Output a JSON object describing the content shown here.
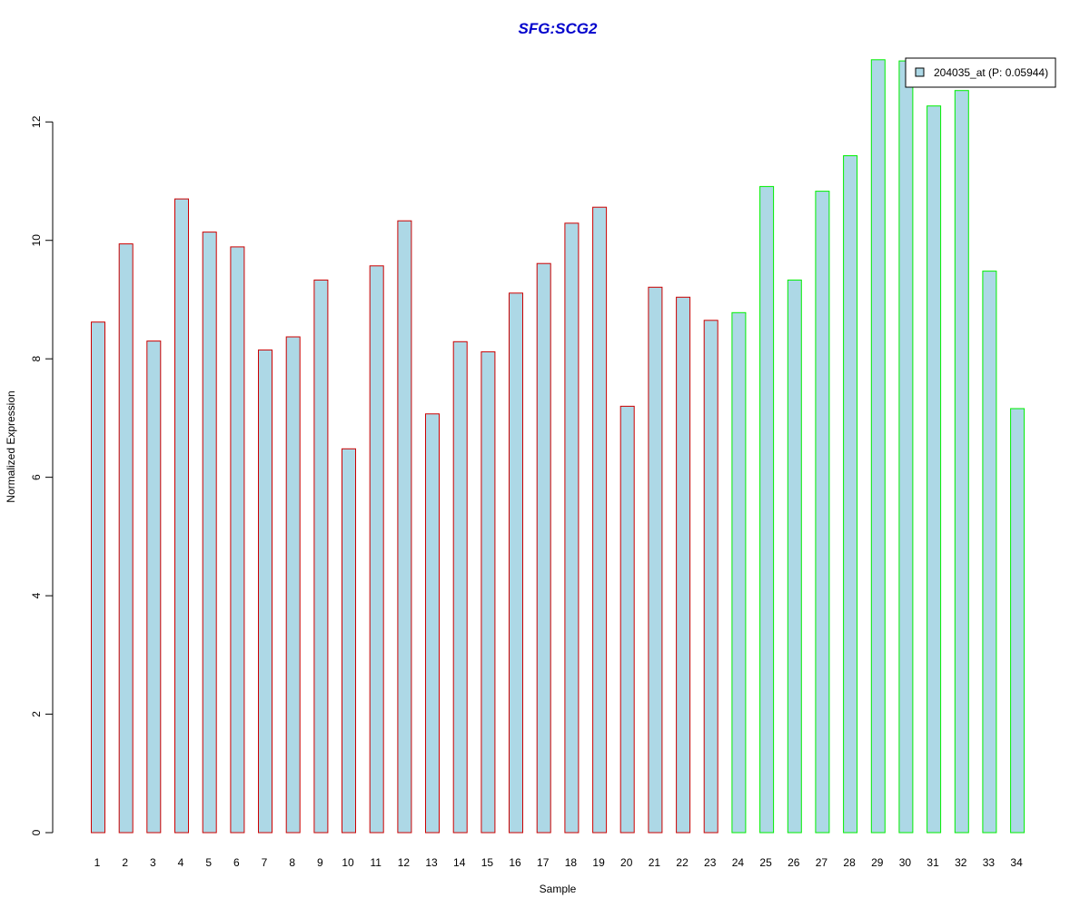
{
  "chart_data": {
    "type": "bar",
    "title": "SFG:SCG2",
    "xlabel": "Sample",
    "ylabel": "Normalized Expression",
    "ylim": [
      0,
      13.2
    ],
    "yticks": [
      0,
      2,
      4,
      6,
      8,
      10,
      12
    ],
    "grid": false,
    "legend_position": "top-right",
    "categories": [
      "1",
      "2",
      "3",
      "4",
      "5",
      "6",
      "7",
      "8",
      "9",
      "10",
      "11",
      "12",
      "13",
      "14",
      "15",
      "16",
      "17",
      "18",
      "19",
      "20",
      "21",
      "22",
      "23",
      "24",
      "25",
      "26",
      "27",
      "28",
      "29",
      "30",
      "31",
      "32",
      "33",
      "34"
    ],
    "series": [
      {
        "name": "204035_at (P: 0.05944)",
        "values": [
          8.62,
          9.94,
          8.3,
          10.7,
          10.14,
          9.89,
          8.15,
          8.37,
          9.33,
          6.48,
          9.57,
          10.33,
          7.07,
          8.29,
          8.12,
          9.11,
          9.61,
          10.29,
          10.56,
          7.2,
          9.21,
          9.04,
          8.65,
          8.78,
          10.91,
          9.33,
          10.83,
          11.43,
          13.05,
          13.03,
          12.27,
          12.53,
          9.48,
          7.16
        ]
      }
    ],
    "group_count_first": 23
  },
  "colors": {
    "title": "#0000cc",
    "bar_fill": "#add8e6",
    "border_group1": "#cc0000",
    "border_group2": "#00ee00",
    "axis": "#000000"
  }
}
